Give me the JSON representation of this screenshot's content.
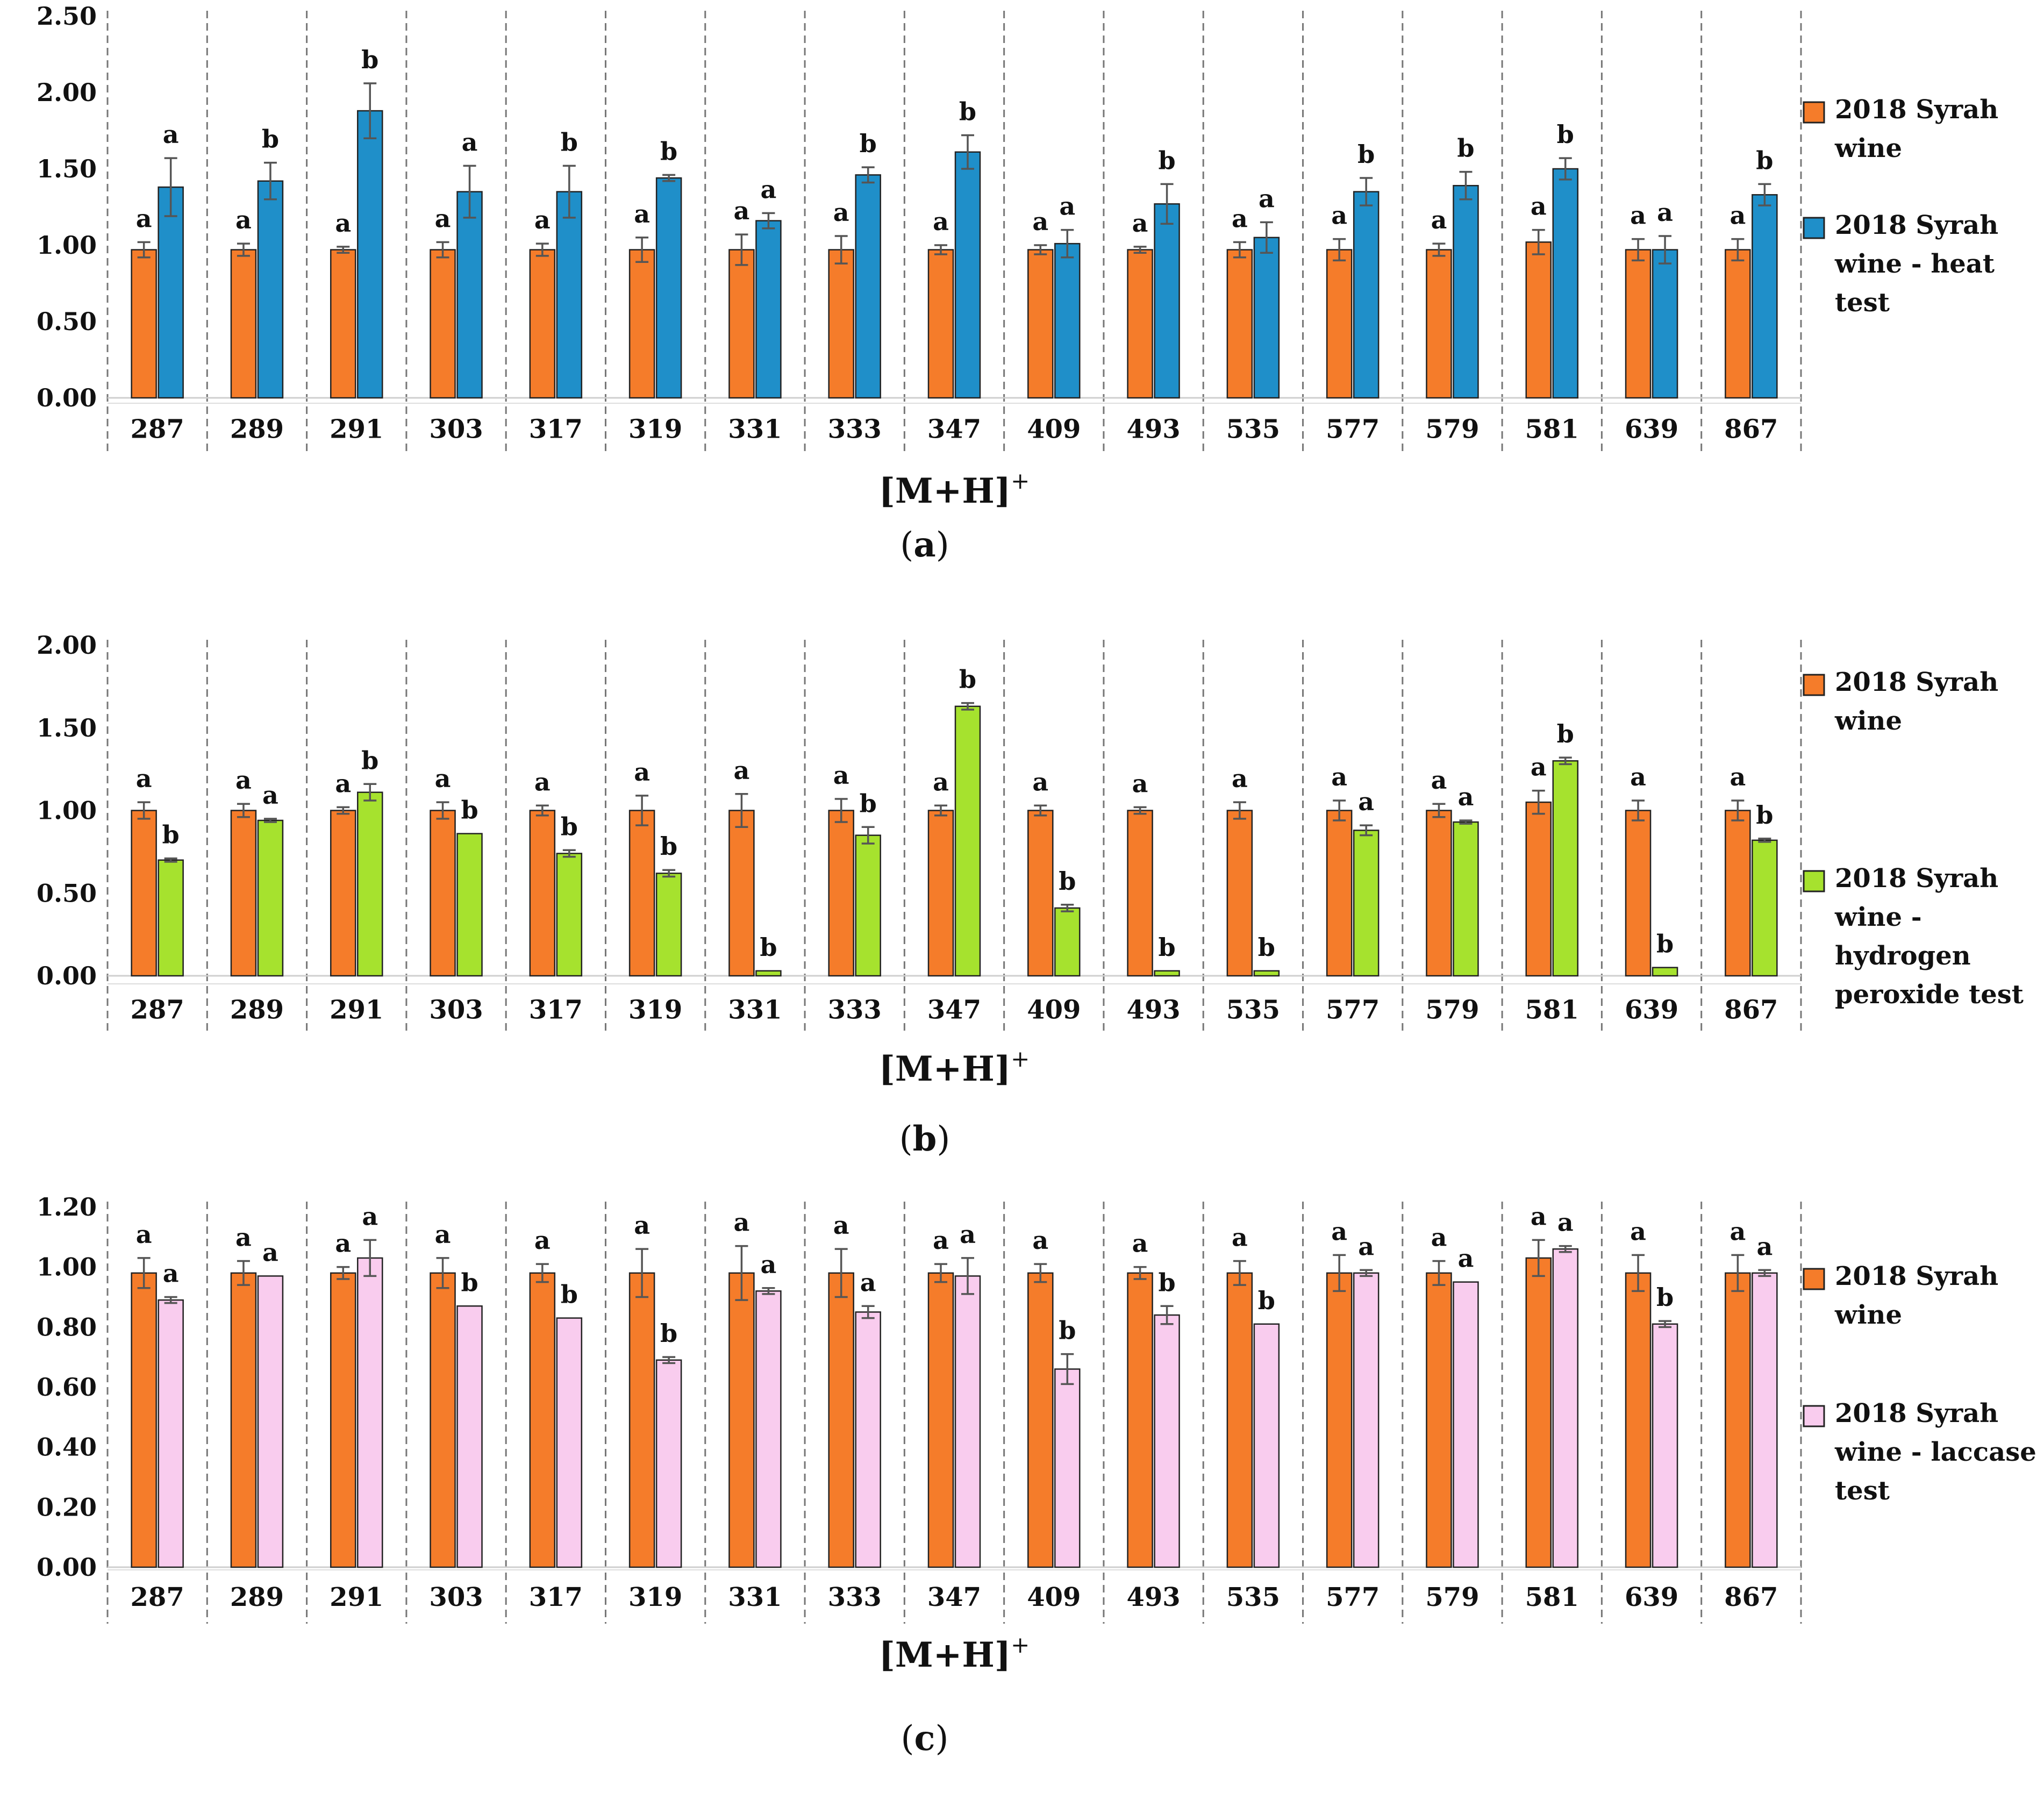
{
  "categories": [
    "287",
    "289",
    "291",
    "303",
    "317",
    "319",
    "331",
    "333",
    "347",
    "409",
    "493",
    "535",
    "577",
    "579",
    "581",
    "639",
    "867"
  ],
  "chart_data": [
    {
      "type": "bar",
      "panel_label": "a",
      "xlabel": "[M+H]",
      "xlabel_sup": "+",
      "ylim": [
        0,
        2.5
      ],
      "yticks": [
        "0.00",
        "0.50",
        "1.00",
        "1.50",
        "2.00",
        "2.50"
      ],
      "series": [
        {
          "name": "2018 Syrah wine",
          "legend_lines": [
            "2018 Syrah",
            "wine"
          ],
          "color": "#F57C2A",
          "values": [
            0.97,
            0.97,
            0.97,
            0.97,
            0.97,
            0.97,
            0.97,
            0.97,
            0.97,
            0.97,
            0.97,
            0.97,
            0.97,
            0.97,
            1.02,
            0.97,
            0.97
          ],
          "errors": [
            0.05,
            0.04,
            0.02,
            0.05,
            0.04,
            0.08,
            0.1,
            0.09,
            0.03,
            0.03,
            0.02,
            0.05,
            0.07,
            0.04,
            0.08,
            0.07,
            0.07
          ],
          "letters": [
            "a",
            "a",
            "a",
            "a",
            "a",
            "a",
            "a",
            "a",
            "a",
            "a",
            "a",
            "a",
            "a",
            "a",
            "a",
            "a",
            "a"
          ]
        },
        {
          "name": "2018 Syrah wine - heat test",
          "legend_lines": [
            "2018 Syrah",
            "wine - heat",
            "test"
          ],
          "color": "#1F8FC9",
          "values": [
            1.38,
            1.42,
            1.88,
            1.35,
            1.35,
            1.44,
            1.16,
            1.46,
            1.61,
            1.01,
            1.27,
            1.05,
            1.35,
            1.39,
            1.5,
            0.97,
            1.33
          ],
          "errors": [
            0.19,
            0.12,
            0.18,
            0.17,
            0.17,
            0.02,
            0.05,
            0.05,
            0.11,
            0.09,
            0.13,
            0.1,
            0.09,
            0.09,
            0.07,
            0.09,
            0.07
          ],
          "letters": [
            "a",
            "b",
            "b",
            "a",
            "b",
            "b",
            "a",
            "b",
            "b",
            "a",
            "b",
            "a",
            "b",
            "b",
            "b",
            "a",
            "b"
          ]
        }
      ]
    },
    {
      "type": "bar",
      "panel_label": "b",
      "xlabel": "[M+H]",
      "xlabel_sup": "+",
      "ylim": [
        0,
        2.0
      ],
      "yticks": [
        "0.00",
        "0.50",
        "1.00",
        "1.50",
        "2.00"
      ],
      "series": [
        {
          "name": "2018 Syrah wine",
          "legend_lines": [
            "2018 Syrah",
            "wine"
          ],
          "color": "#F57C2A",
          "values": [
            1.0,
            1.0,
            1.0,
            1.0,
            1.0,
            1.0,
            1.0,
            1.0,
            1.0,
            1.0,
            1.0,
            1.0,
            1.0,
            1.0,
            1.05,
            1.0,
            1.0
          ],
          "errors": [
            0.05,
            0.04,
            0.02,
            0.05,
            0.03,
            0.09,
            0.1,
            0.07,
            0.03,
            0.03,
            0.02,
            0.05,
            0.06,
            0.04,
            0.07,
            0.06,
            0.06
          ],
          "letters": [
            "a",
            "a",
            "a",
            "a",
            "a",
            "a",
            "a",
            "a",
            "a",
            "a",
            "a",
            "a",
            "a",
            "a",
            "a",
            "a",
            "a"
          ]
        },
        {
          "name": "2018 Syrah wine - hydrogen peroxide test",
          "legend_lines": [
            "2018 Syrah",
            "wine -",
            "hydrogen",
            "peroxide test"
          ],
          "color": "#A6E22E",
          "values": [
            0.7,
            0.94,
            1.11,
            0.86,
            0.74,
            0.62,
            0.03,
            0.85,
            1.63,
            0.41,
            0.03,
            0.03,
            0.88,
            0.93,
            1.3,
            0.05,
            0.82
          ],
          "errors": [
            0.01,
            0.01,
            0.05,
            0.0,
            0.02,
            0.02,
            0.0,
            0.05,
            0.02,
            0.02,
            0.0,
            0.0,
            0.03,
            0.01,
            0.02,
            0.0,
            0.01
          ],
          "letters": [
            "b",
            "a",
            "b",
            "b",
            "b",
            "b",
            "b",
            "b",
            "b",
            "b",
            "b",
            "b",
            "a",
            "a",
            "b",
            "b",
            "b"
          ]
        }
      ]
    },
    {
      "type": "bar",
      "panel_label": "c",
      "xlabel": "[M+H]",
      "xlabel_sup": "+",
      "ylim": [
        0,
        1.2
      ],
      "yticks": [
        "0.00",
        "0.20",
        "0.40",
        "0.60",
        "0.80",
        "1.00",
        "1.20"
      ],
      "series": [
        {
          "name": "2018 Syrah wine",
          "legend_lines": [
            "2018 Syrah",
            "wine"
          ],
          "color": "#F57C2A",
          "values": [
            0.98,
            0.98,
            0.98,
            0.98,
            0.98,
            0.98,
            0.98,
            0.98,
            0.98,
            0.98,
            0.98,
            0.98,
            0.98,
            0.98,
            1.03,
            0.98,
            0.98
          ],
          "errors": [
            0.05,
            0.04,
            0.02,
            0.05,
            0.03,
            0.08,
            0.09,
            0.08,
            0.03,
            0.03,
            0.02,
            0.04,
            0.06,
            0.04,
            0.06,
            0.06,
            0.06
          ],
          "letters": [
            "a",
            "a",
            "a",
            "a",
            "a",
            "a",
            "a",
            "a",
            "a",
            "a",
            "a",
            "a",
            "a",
            "a",
            "a",
            "a",
            "a"
          ]
        },
        {
          "name": "2018 Syrah wine - laccase test",
          "legend_lines": [
            "2018 Syrah",
            "wine - laccase",
            "test"
          ],
          "color": "#F9CCEE",
          "values": [
            0.89,
            0.97,
            1.03,
            0.87,
            0.83,
            0.69,
            0.92,
            0.85,
            0.97,
            0.66,
            0.84,
            0.81,
            0.98,
            0.95,
            1.06,
            0.81,
            0.98
          ],
          "errors": [
            0.01,
            0.0,
            0.06,
            0.0,
            0.0,
            0.01,
            0.01,
            0.02,
            0.06,
            0.05,
            0.03,
            0.0,
            0.01,
            0.0,
            0.01,
            0.01,
            0.01
          ],
          "letters": [
            "a",
            "a",
            "a",
            "b",
            "b",
            "b",
            "a",
            "a",
            "a",
            "b",
            "b",
            "b",
            "a",
            "a",
            "a",
            "b",
            "a"
          ]
        }
      ]
    }
  ]
}
